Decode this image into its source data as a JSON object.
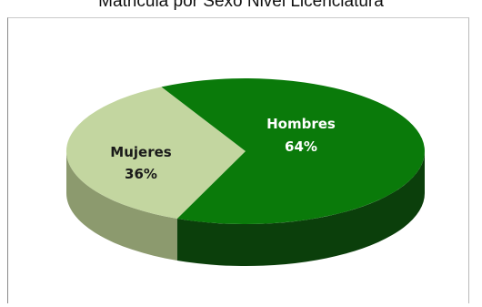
{
  "title": "Matricula por Sexo Nivel Licenciatura",
  "chart_data": {
    "type": "pie",
    "title": "Matricula por Sexo Nivel Licenciatura",
    "categories": [
      "Hombres",
      "Mujeres"
    ],
    "values": [
      64,
      36
    ],
    "labels": [
      {
        "name": "Hombres",
        "value": "64%"
      },
      {
        "name": "Mujeres",
        "value": "36%"
      }
    ],
    "colors": {
      "Hombres": {
        "top": "#0a7a0a",
        "side": "#0b3f0b"
      },
      "Mujeres": {
        "top": "#c3d6a0",
        "side": "#8c9a6e"
      }
    },
    "legend": "none",
    "style": "3d"
  }
}
